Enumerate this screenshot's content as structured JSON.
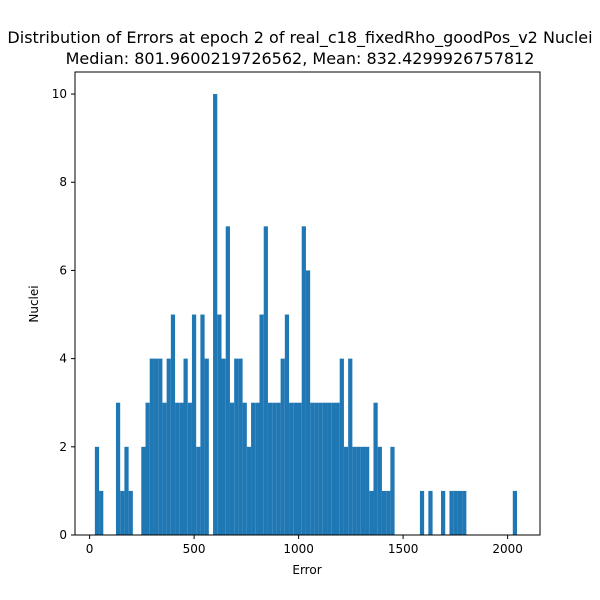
{
  "chart_data": {
    "type": "bar",
    "title": "Distribution of Errors at epoch 2 of real_c18_fixedRho_goodPos_v2 Nuclei",
    "subtitle": "Median: 801.9600219726562, Mean: 832.4299926757812",
    "xlabel": "Error",
    "ylabel": "Nuclei",
    "xlim": [
      -70,
      2155
    ],
    "ylim": [
      0,
      10.5
    ],
    "xticks": [
      0,
      500,
      1000,
      1500,
      2000
    ],
    "yticks": [
      0,
      2,
      4,
      6,
      8,
      10
    ],
    "grid": false,
    "bar_color": "#1f77b4",
    "bin_start": 25,
    "bin_width": 20.2,
    "counts": [
      2,
      1,
      0,
      0,
      0,
      3,
      1,
      2,
      1,
      0,
      0,
      2,
      3,
      4,
      4,
      4,
      3,
      4,
      5,
      3,
      3,
      4,
      3,
      5,
      2,
      5,
      4,
      0,
      10,
      5,
      4,
      7,
      3,
      4,
      4,
      3,
      2,
      3,
      3,
      5,
      7,
      3,
      3,
      3,
      4,
      5,
      3,
      3,
      3,
      7,
      6,
      3,
      3,
      3,
      3,
      3,
      3,
      3,
      4,
      2,
      4,
      2,
      2,
      2,
      2,
      1,
      3,
      2,
      1,
      1,
      2,
      0,
      0,
      0,
      0,
      0,
      0,
      1,
      0,
      1,
      0,
      0,
      1,
      0,
      1,
      1,
      1,
      1,
      0,
      0,
      0,
      0,
      0,
      0,
      0,
      0,
      0,
      0,
      0,
      1
    ]
  }
}
